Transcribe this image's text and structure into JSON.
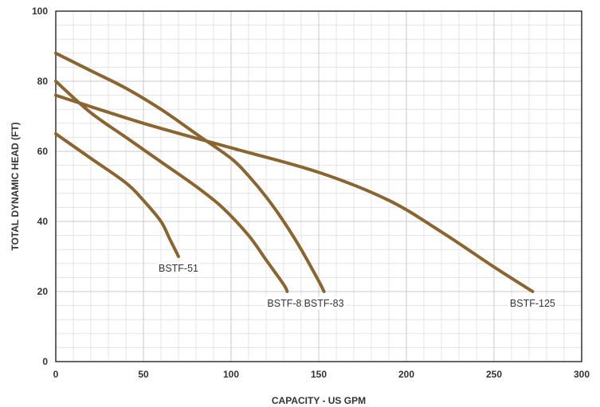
{
  "chart_data": {
    "type": "line",
    "title": "",
    "xlabel": "CAPACITY - US GPM",
    "ylabel": "TOTAL DYNAMIC HEAD (FT)",
    "xlim": [
      0,
      300
    ],
    "ylim": [
      0,
      100
    ],
    "x_ticks": [
      0,
      50,
      100,
      150,
      200,
      250,
      300
    ],
    "y_ticks": [
      0,
      20,
      40,
      60,
      80,
      100
    ],
    "x_tick_labels": [
      "0",
      "50",
      "100",
      "150",
      "200",
      "250",
      "300"
    ],
    "y_tick_labels": [
      "0",
      "20",
      "40",
      "60",
      "80",
      "100"
    ],
    "grid": true,
    "minor_grid_step": {
      "x": 10,
      "y": 4
    },
    "colors": {
      "curve": "#8a6530",
      "grid_major": "#c8c8c8",
      "grid_minor": "#e4e4e4",
      "axis": "#333333"
    },
    "series": [
      {
        "name": "BSTF-51",
        "x": [
          0,
          20,
          40,
          50,
          60,
          65,
          70
        ],
        "y": [
          65,
          58,
          51,
          46,
          40,
          35,
          30
        ]
      },
      {
        "name": "BSTF-82",
        "x": [
          0,
          20,
          40,
          60,
          80,
          95,
          110,
          120,
          130,
          132
        ],
        "y": [
          80,
          71,
          64,
          57,
          50,
          44,
          36,
          29,
          22,
          20
        ]
      },
      {
        "name": "BSTF-83",
        "x": [
          0,
          20,
          40,
          60,
          80,
          100,
          110,
          120,
          130,
          140,
          150,
          153
        ],
        "y": [
          88,
          83,
          78,
          72,
          65,
          58,
          53,
          47,
          40,
          32,
          23,
          20
        ]
      },
      {
        "name": "BSTF-125",
        "x": [
          0,
          50,
          100,
          150,
          190,
          220,
          250,
          272
        ],
        "y": [
          76,
          68,
          61,
          54,
          46,
          37,
          27,
          20
        ]
      }
    ]
  }
}
